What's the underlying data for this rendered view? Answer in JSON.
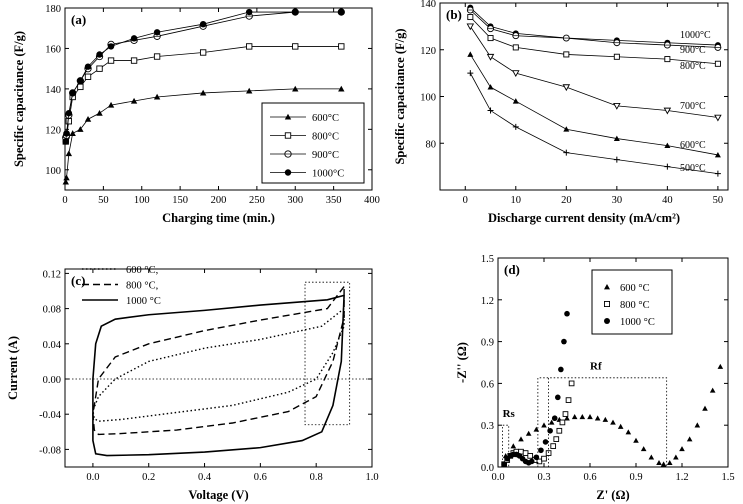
{
  "chart_data": [
    {
      "panel_label": "(a)",
      "type": "line",
      "xlabel": "Charging time (min.)",
      "ylabel": "Specific capacitance (F/g)",
      "xlim": [
        0,
        400
      ],
      "ylim": [
        90,
        180
      ],
      "xticks": [
        0,
        50,
        100,
        150,
        200,
        250,
        300,
        350,
        400
      ],
      "yticks": [
        100,
        120,
        140,
        160,
        180
      ],
      "legend_position": "bottom-right",
      "series": [
        {
          "name": "600°C",
          "marker": "triangle",
          "x": [
            1,
            2,
            5,
            10,
            20,
            30,
            45,
            60,
            90,
            120,
            180,
            240,
            300,
            360
          ],
          "y": [
            94,
            96,
            108,
            118,
            120,
            125,
            128,
            132,
            134,
            136,
            138,
            139,
            140,
            140
          ]
        },
        {
          "name": "800°C",
          "marker": "square",
          "x": [
            1,
            2,
            5,
            10,
            20,
            30,
            45,
            60,
            90,
            120,
            180,
            240,
            300,
            360
          ],
          "y": [
            114,
            117,
            124,
            136,
            141,
            146,
            150,
            154,
            154,
            156,
            158,
            161,
            161,
            161
          ]
        },
        {
          "name": "900°C",
          "marker": "circle-open",
          "x": [
            1,
            2,
            5,
            10,
            20,
            30,
            45,
            60,
            90,
            120,
            180,
            240,
            300,
            360
          ],
          "y": [
            116,
            117,
            127,
            138,
            144,
            150,
            156,
            162,
            164,
            166,
            171,
            176,
            178,
            178
          ]
        },
        {
          "name": "1000°C",
          "marker": "circle-filled",
          "x": [
            1,
            2,
            5,
            10,
            20,
            30,
            45,
            60,
            90,
            120,
            180,
            240,
            300,
            360
          ],
          "y": [
            114,
            118,
            128,
            138,
            144,
            151,
            157,
            161,
            165,
            168,
            172,
            178,
            178,
            178
          ]
        }
      ]
    },
    {
      "panel_label": "(b)",
      "type": "line",
      "xlabel": "Discharge current density (mA/cm²)",
      "ylabel": "Specific capacitance (F/g)",
      "xlim": [
        -5,
        52
      ],
      "ylim": [
        60,
        140
      ],
      "xticks": [
        0,
        10,
        20,
        30,
        40,
        50
      ],
      "yticks": [
        80,
        100,
        120,
        140
      ],
      "series": [
        {
          "name": "1000°C",
          "marker": "circle-filled",
          "x": [
            1,
            5,
            10,
            20,
            30,
            40,
            50
          ],
          "y": [
            138,
            130,
            127,
            125,
            124,
            123,
            122
          ]
        },
        {
          "name": "900°C",
          "marker": "circle-open",
          "x": [
            1,
            5,
            10,
            20,
            30,
            40,
            50
          ],
          "y": [
            137,
            129,
            126,
            125,
            123,
            122,
            121
          ]
        },
        {
          "name": "800°C",
          "marker": "square",
          "x": [
            1,
            5,
            10,
            20,
            30,
            40,
            50
          ],
          "y": [
            134,
            125,
            121,
            118,
            117,
            116,
            114
          ]
        },
        {
          "name": "700°C",
          "marker": "triangle-down",
          "x": [
            1,
            5,
            10,
            20,
            30,
            40,
            50
          ],
          "y": [
            130,
            117,
            110,
            104,
            96,
            94,
            91
          ]
        },
        {
          "name": "600°C",
          "marker": "triangle",
          "x": [
            1,
            5,
            10,
            20,
            30,
            40,
            50
          ],
          "y": [
            118,
            104,
            98,
            86,
            82,
            79,
            75
          ]
        },
        {
          "name": "500°C",
          "marker": "plus",
          "x": [
            1,
            5,
            10,
            20,
            30,
            40,
            50
          ],
          "y": [
            110,
            94,
            87,
            76,
            73,
            70,
            67
          ]
        }
      ]
    },
    {
      "panel_label": "(c)",
      "type": "line",
      "xlabel": "Voltage (V)",
      "ylabel": "Current (A)",
      "xlim": [
        -0.1,
        1.0
      ],
      "ylim": [
        -0.1,
        0.125
      ],
      "xticks": [
        "0.0",
        "0.2",
        "0.4",
        "0.6",
        "0.8",
        "1.0"
      ],
      "yticks": [
        "-0.08",
        "-0.04",
        "0.00",
        "0.04",
        "0.08",
        "0.12"
      ],
      "legend_position": "top-left",
      "series": [
        {
          "name": "600 °C,",
          "style": "dotted",
          "x": [
            0.9,
            0.82,
            0.6,
            0.4,
            0.2,
            0.08,
            0.02,
            0.0,
            0.005,
            0.02,
            0.1,
            0.3,
            0.5,
            0.7,
            0.8,
            0.86,
            0.9,
            0.9
          ],
          "y": [
            0.08,
            0.06,
            0.045,
            0.035,
            0.02,
            0.0,
            -0.02,
            -0.036,
            -0.045,
            -0.048,
            -0.046,
            -0.038,
            -0.03,
            -0.015,
            0.0,
            0.03,
            0.06,
            0.08
          ]
        },
        {
          "name": "800 °C,",
          "style": "dashed",
          "x": [
            0.9,
            0.84,
            0.6,
            0.4,
            0.2,
            0.08,
            0.02,
            0.0,
            0.005,
            0.02,
            0.1,
            0.3,
            0.5,
            0.7,
            0.8,
            0.86,
            0.9,
            0.9
          ],
          "y": [
            0.105,
            0.08,
            0.067,
            0.055,
            0.04,
            0.025,
            0.0,
            -0.04,
            -0.058,
            -0.063,
            -0.062,
            -0.058,
            -0.05,
            -0.037,
            -0.02,
            0.02,
            0.07,
            0.105
          ]
        },
        {
          "name": "1000 °C",
          "style": "solid",
          "x": [
            0.9,
            0.84,
            0.6,
            0.4,
            0.2,
            0.08,
            0.03,
            0.01,
            0.0,
            0.0,
            0.01,
            0.05,
            0.2,
            0.4,
            0.6,
            0.75,
            0.82,
            0.86,
            0.89,
            0.9
          ],
          "y": [
            0.095,
            0.09,
            0.084,
            0.078,
            0.073,
            0.068,
            0.06,
            0.04,
            0.0,
            -0.07,
            -0.085,
            -0.087,
            -0.086,
            -0.083,
            -0.078,
            -0.07,
            -0.06,
            -0.03,
            0.02,
            0.095
          ]
        }
      ]
    },
    {
      "panel_label": "(d)",
      "type": "scatter",
      "xlabel": "Z' (Ω)",
      "ylabel": "-Z'' (Ω)",
      "xlim": [
        0.0,
        1.5
      ],
      "ylim": [
        0.0,
        1.5
      ],
      "xticks": [
        "0.0",
        "0.3",
        "0.6",
        "0.9",
        "1.2",
        "1.5"
      ],
      "yticks": [
        "0.0",
        "0.3",
        "0.6",
        "0.9",
        "1.2",
        "1.5"
      ],
      "legend_position": "top-center",
      "annotations": [
        "Rs",
        "Rf"
      ],
      "series": [
        {
          "name": "600 °C",
          "marker": "triangle",
          "x": [
            0.05,
            0.1,
            0.15,
            0.2,
            0.25,
            0.3,
            0.35,
            0.4,
            0.45,
            0.5,
            0.55,
            0.6,
            0.65,
            0.7,
            0.75,
            0.8,
            0.85,
            0.9,
            0.95,
            1.0,
            1.05,
            1.08,
            1.12,
            1.16,
            1.2,
            1.25,
            1.3,
            1.35,
            1.4,
            1.45
          ],
          "y": [
            0.08,
            0.15,
            0.2,
            0.24,
            0.27,
            0.3,
            0.32,
            0.34,
            0.35,
            0.36,
            0.36,
            0.36,
            0.35,
            0.34,
            0.32,
            0.29,
            0.25,
            0.19,
            0.13,
            0.07,
            0.03,
            0.02,
            0.03,
            0.07,
            0.13,
            0.2,
            0.3,
            0.42,
            0.55,
            0.72
          ]
        },
        {
          "name": "800 °C",
          "marker": "square",
          "x": [
            0.04,
            0.06,
            0.08,
            0.1,
            0.12,
            0.15,
            0.18,
            0.21,
            0.24,
            0.27,
            0.3,
            0.33,
            0.36,
            0.38,
            0.4,
            0.42,
            0.44,
            0.46,
            0.48
          ],
          "y": [
            0.02,
            0.05,
            0.08,
            0.1,
            0.11,
            0.11,
            0.1,
            0.08,
            0.05,
            0.04,
            0.06,
            0.1,
            0.15,
            0.2,
            0.26,
            0.32,
            0.38,
            0.48,
            0.6
          ]
        },
        {
          "name": "1000 °C",
          "marker": "circle-filled",
          "x": [
            0.04,
            0.06,
            0.08,
            0.1,
            0.12,
            0.14,
            0.16,
            0.18,
            0.2,
            0.22,
            0.25,
            0.28,
            0.31,
            0.34,
            0.37,
            0.39,
            0.41,
            0.43,
            0.45
          ],
          "y": [
            0.02,
            0.06,
            0.08,
            0.09,
            0.09,
            0.08,
            0.06,
            0.04,
            0.03,
            0.04,
            0.07,
            0.12,
            0.18,
            0.26,
            0.35,
            0.5,
            0.7,
            0.9,
            1.1
          ]
        }
      ]
    }
  ]
}
